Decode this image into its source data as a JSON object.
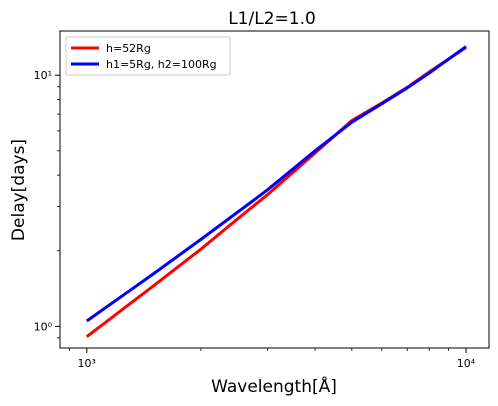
{
  "chart_data": {
    "type": "line",
    "title": "L1/L2=1.0",
    "xlabel": "Wavelength[Å]",
    "ylabel": "Delay[days]",
    "xscale": "log",
    "yscale": "log",
    "xlim": [
      850,
      11500
    ],
    "ylim": [
      0.82,
      15
    ],
    "grid": false,
    "legend_position": "top-left",
    "x": [
      1000,
      1500,
      2000,
      2500,
      3000,
      4000,
      5000,
      6000,
      7000,
      8000,
      9000,
      10000
    ],
    "series": [
      {
        "name": "h=52Rg",
        "color": "#ff0000",
        "values": [
          0.91,
          1.45,
          2.03,
          2.68,
          3.35,
          4.9,
          6.6,
          7.75,
          8.95,
          10.3,
          11.6,
          12.9
        ]
      },
      {
        "name": "h1=5Rg, h2=100Rg",
        "color": "#0000ff",
        "values": [
          1.05,
          1.62,
          2.22,
          2.85,
          3.5,
          5.0,
          6.5,
          7.7,
          8.9,
          10.2,
          11.6,
          13.0
        ]
      }
    ],
    "x_ticks": [
      {
        "value": 1000,
        "label": "10³"
      },
      {
        "value": 10000,
        "label": "10⁴"
      }
    ],
    "y_ticks": [
      {
        "value": 1,
        "label": "10⁰"
      },
      {
        "value": 10,
        "label": "10¹"
      }
    ]
  }
}
